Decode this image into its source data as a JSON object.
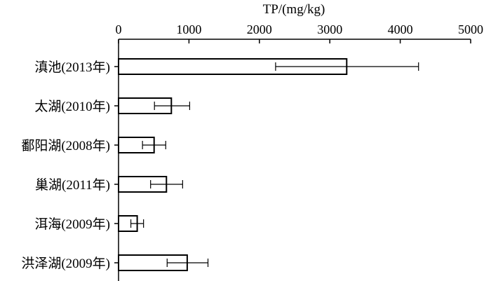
{
  "chart_data": {
    "type": "bar",
    "orientation": "horizontal",
    "xlabel": "TP/(mg/kg)",
    "xlabel_position": "top",
    "ylabel": "",
    "xlim": [
      0,
      5000
    ],
    "xticks": [
      "0",
      "1000",
      "2000",
      "3000",
      "4000",
      "5000"
    ],
    "categories": [
      "滇池(2013年)",
      "太湖(2010年)",
      "鄱阳湖(2008年)",
      "巢湖(2011年)",
      "洱海(2009年)",
      "洪泽湖(2009年)"
    ],
    "values": [
      3240,
      750,
      505,
      680,
      265,
      975
    ],
    "error_low": [
      2230,
      510,
      340,
      455,
      175,
      690
    ],
    "error_high": [
      4260,
      1010,
      670,
      910,
      355,
      1270
    ],
    "grid": false,
    "legend": "none",
    "colors": {
      "bar_fill": "#ffffff",
      "bar_stroke": "#000000",
      "axis": "#000000"
    }
  }
}
